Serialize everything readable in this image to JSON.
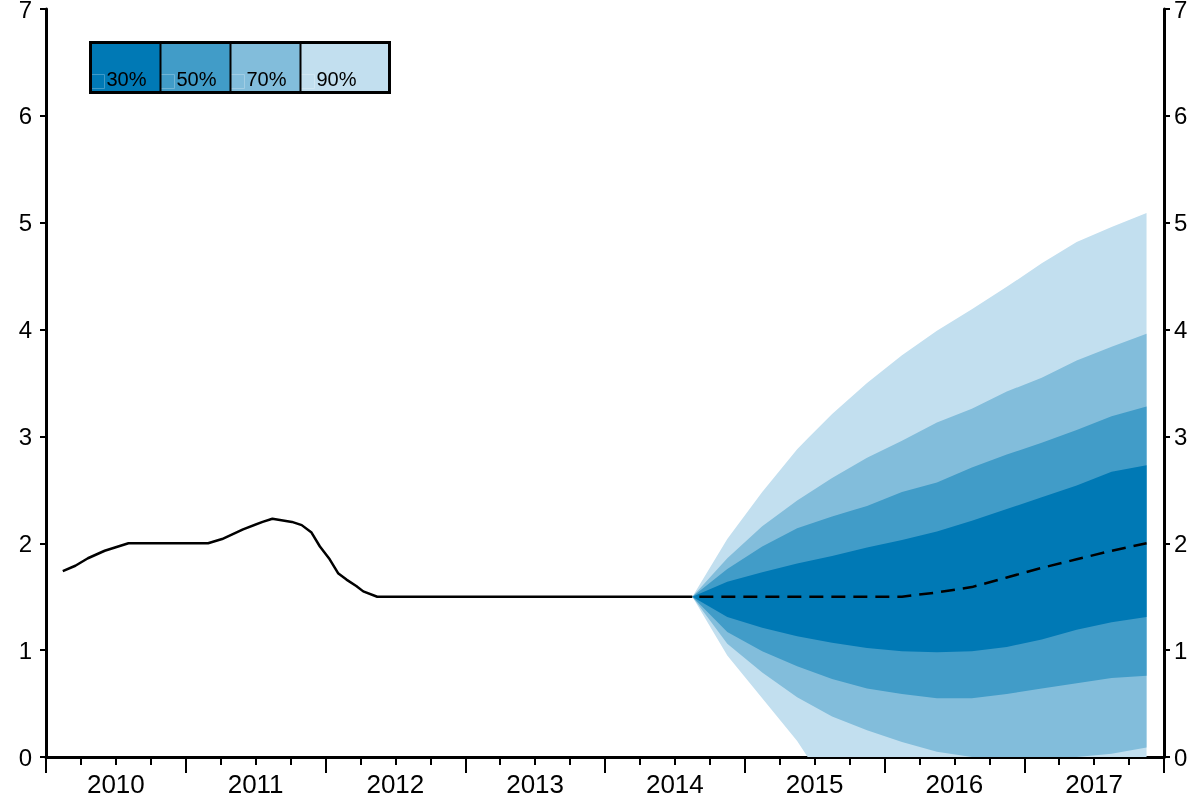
{
  "chart_data": {
    "type": "line",
    "legend": "top left",
    "marker": "none",
    "grid": false,
    "xlim": [
      2010,
      2018
    ],
    "xticks": [
      {
        "value": 2010,
        "label": null
      },
      {
        "value": 2010.25,
        "label": null
      },
      {
        "value": 2010.5,
        "label": "2010"
      },
      {
        "value": 2010.75,
        "label": null
      },
      {
        "value": 2011,
        "label": null
      },
      {
        "value": 2011.25,
        "label": null
      },
      {
        "value": 2011.5,
        "label": "2011"
      },
      {
        "value": 2011.75,
        "label": null
      },
      {
        "value": 2012,
        "label": null
      },
      {
        "value": 2012.25,
        "label": null
      },
      {
        "value": 2012.5,
        "label": "2012"
      },
      {
        "value": 2012.75,
        "label": null
      },
      {
        "value": 2013,
        "label": null
      },
      {
        "value": 2013.25,
        "label": null
      },
      {
        "value": 2013.5,
        "label": "2013"
      },
      {
        "value": 2013.75,
        "label": null
      },
      {
        "value": 2014,
        "label": null
      },
      {
        "value": 2014.25,
        "label": null
      },
      {
        "value": 2014.5,
        "label": "2014"
      },
      {
        "value": 2014.75,
        "label": null
      },
      {
        "value": 2015,
        "label": null
      },
      {
        "value": 2015.25,
        "label": null
      },
      {
        "value": 2015.5,
        "label": "2015"
      },
      {
        "value": 2015.75,
        "label": null
      },
      {
        "value": 2016,
        "label": null
      },
      {
        "value": 2016.25,
        "label": null
      },
      {
        "value": 2016.5,
        "label": "2016"
      },
      {
        "value": 2016.75,
        "label": null
      },
      {
        "value": 2017,
        "label": null
      },
      {
        "value": 2017.25,
        "label": null
      },
      {
        "value": 2017.5,
        "label": "2017"
      },
      {
        "value": 2017.75,
        "label": null
      },
      {
        "value": 2018,
        "label": null
      }
    ],
    "ylim": [
      0,
      7
    ],
    "yticks": [
      0,
      1,
      2,
      3,
      4,
      5,
      6,
      7
    ],
    "y2lim": [
      0,
      7
    ],
    "y2ticks": [
      0,
      1,
      2,
      3,
      4,
      5,
      6,
      7
    ],
    "series": [
      {
        "color": "#000000",
        "line_style": "solid",
        "x": [
          2010.12,
          2010.21,
          2010.3,
          2010.42,
          2010.59,
          2011.16,
          2011.26,
          2011.41,
          2011.55,
          2011.62,
          2011.76,
          2011.83,
          2011.9,
          2011.96,
          2012.03,
          2012.09,
          2012.15,
          2012.22,
          2012.27,
          2012.37,
          2014.625
        ],
        "values": [
          1.74,
          1.79,
          1.86,
          1.93,
          2.0,
          2.0,
          2.04,
          2.13,
          2.2,
          2.23,
          2.2,
          2.17,
          2.1,
          1.97,
          1.85,
          1.72,
          1.66,
          1.6,
          1.55,
          1.5,
          1.5
        ]
      },
      {
        "color": "#000000",
        "line_style": "dashed",
        "x": [
          2014.625,
          2015.875,
          2016.125,
          2016.375,
          2016.625,
          2016.875,
          2017.125,
          2017.375,
          2017.625,
          2017.875
        ],
        "values": [
          1.5,
          1.5,
          1.5,
          1.54,
          1.59,
          1.68,
          1.77,
          1.85,
          1.93,
          2.0
        ]
      },
      {
        "name": "30%",
        "type": "area",
        "color": "#0079b5",
        "x": [
          2014.625,
          2014.875,
          2015.125,
          2015.375,
          2015.625,
          2015.875,
          2016.125,
          2016.375,
          2016.625,
          2016.875,
          2017.125,
          2017.375,
          2017.625,
          2017.875
        ],
        "values": [
          null,
          null,
          null,
          null,
          null,
          null,
          null,
          null,
          null,
          null,
          null,
          null,
          null,
          null
        ],
        "upper": [
          1.5,
          1.64,
          1.73,
          1.81,
          1.88,
          1.96,
          2.03,
          2.11,
          2.21,
          2.32,
          2.43,
          2.54,
          2.67,
          2.73
        ],
        "lower": [
          1.5,
          1.31,
          1.21,
          1.13,
          1.07,
          1.02,
          0.99,
          0.98,
          0.99,
          1.03,
          1.1,
          1.19,
          1.26,
          1.31
        ]
      },
      {
        "name": "50%",
        "type": "area",
        "color": "#419cc8",
        "x": [
          2014.625,
          2014.875,
          2015.125,
          2015.375,
          2015.625,
          2015.875,
          2016.125,
          2016.375,
          2016.625,
          2016.875,
          2017.125,
          2017.375,
          2017.625,
          2017.875
        ],
        "values": [
          null,
          null,
          null,
          null,
          null,
          null,
          null,
          null,
          null,
          null,
          null,
          null,
          null,
          null
        ],
        "upper": [
          1.5,
          1.76,
          1.97,
          2.14,
          2.25,
          2.35,
          2.48,
          2.57,
          2.71,
          2.83,
          2.94,
          3.06,
          3.19,
          3.28
        ],
        "lower": [
          1.5,
          1.17,
          0.99,
          0.85,
          0.73,
          0.64,
          0.59,
          0.55,
          0.55,
          0.59,
          0.64,
          0.69,
          0.74,
          0.76
        ]
      },
      {
        "name": "70%",
        "type": "area",
        "color": "#82bddb",
        "x": [
          2014.625,
          2014.875,
          2015.125,
          2015.375,
          2015.625,
          2015.875,
          2016.125,
          2016.375,
          2016.625,
          2016.875,
          2017.125,
          2017.375,
          2017.625,
          2017.875
        ],
        "values": [
          null,
          null,
          null,
          null,
          null,
          null,
          null,
          null,
          null,
          null,
          null,
          null,
          null,
          null
        ],
        "upper": [
          1.5,
          1.86,
          2.16,
          2.4,
          2.61,
          2.8,
          2.96,
          3.13,
          3.26,
          3.42,
          3.55,
          3.71,
          3.84,
          3.96
        ],
        "lower": [
          1.5,
          1.06,
          0.79,
          0.56,
          0.38,
          0.25,
          0.14,
          0.05,
          0,
          0,
          0,
          0,
          0.03,
          0.09
        ]
      },
      {
        "name": "90%",
        "type": "area",
        "color": "#c2dfef",
        "x": [
          2014.625,
          2014.875,
          2015.125,
          2015.375,
          2015.45,
          2015.625,
          2015.875,
          2016.125,
          2016.375,
          2016.625,
          2016.875,
          2017.125,
          2017.375,
          2017.625,
          2017.875
        ],
        "values": [
          null,
          null,
          null,
          null,
          null,
          null,
          null,
          null,
          null,
          null,
          null,
          null,
          null,
          null,
          null
        ],
        "upper": [
          1.5,
          2.04,
          2.48,
          2.88,
          2.98,
          3.21,
          3.5,
          3.76,
          3.99,
          4.19,
          4.4,
          4.62,
          4.82,
          4.96,
          5.09
        ],
        "lower": [
          1.5,
          0.95,
          0.55,
          0.15,
          0,
          0,
          0,
          0,
          0,
          0,
          0,
          0,
          0,
          0,
          0
        ]
      }
    ]
  }
}
